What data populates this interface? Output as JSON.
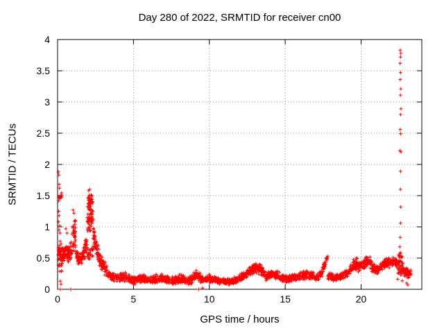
{
  "window": {
    "background": "#ffffff",
    "foreground": "#000000"
  },
  "chart_data": {
    "type": "scatter",
    "title": "Day 280 of 2022, SRMTID for receiver cn00",
    "xlabel": "GPS time / hours",
    "ylabel": "SRMTID / TECUs",
    "xlim": [
      0,
      24
    ],
    "ylim": [
      0,
      4
    ],
    "xticks": [
      0,
      5,
      10,
      15,
      20
    ],
    "yticks": [
      0,
      0.5,
      1,
      1.5,
      2,
      2.5,
      3,
      3.5,
      4
    ],
    "xtick_labels": [
      "0",
      "5",
      "10",
      "15",
      "20"
    ],
    "ytick_labels": [
      "0",
      "0.5",
      "1",
      "1.5",
      "2",
      "2.5",
      "3",
      "3.5",
      "4"
    ],
    "grid": {
      "visible": true,
      "style": "dotted",
      "color": "#8c8c8c",
      "positions_x": [
        5,
        10,
        15,
        20
      ],
      "positions_y": [
        0.5,
        1,
        1.5,
        2,
        2.5,
        3,
        3.5
      ]
    },
    "legend": {
      "visible": false
    },
    "marker": {
      "shape": "plus",
      "color": "#ff0000",
      "size": 5
    },
    "axes_color": "#000000",
    "series_name": "SRMTID",
    "band_segments": {
      "format": [
        "x_start",
        "x_end",
        "y_mean_start",
        "y_mean_end",
        "y_spread",
        "n_points"
      ],
      "rows": [
        [
          0.03,
          0.32,
          0.52,
          0.5,
          0.28,
          45
        ],
        [
          0.05,
          0.27,
          1.47,
          1.5,
          0.07,
          14
        ],
        [
          0.3,
          0.95,
          0.55,
          0.62,
          0.17,
          90
        ],
        [
          0.95,
          1.2,
          0.78,
          0.88,
          0.3,
          35
        ],
        [
          1.2,
          1.6,
          0.55,
          0.45,
          0.13,
          45
        ],
        [
          1.6,
          1.95,
          0.48,
          0.72,
          0.15,
          45
        ],
        [
          1.95,
          2.35,
          0.55,
          0.6,
          0.15,
          25
        ],
        [
          1.95,
          2.35,
          1.05,
          1.25,
          0.28,
          55
        ],
        [
          2.0,
          2.32,
          1.4,
          1.45,
          0.1,
          30
        ],
        [
          2.35,
          2.75,
          0.9,
          0.5,
          0.16,
          50
        ],
        [
          2.75,
          3.3,
          0.48,
          0.27,
          0.12,
          55
        ],
        [
          3.3,
          3.9,
          0.25,
          0.17,
          0.08,
          55
        ],
        [
          3.9,
          4.5,
          0.18,
          0.2,
          0.08,
          55
        ],
        [
          4.5,
          5.1,
          0.18,
          0.14,
          0.07,
          55
        ],
        [
          5.1,
          5.7,
          0.15,
          0.18,
          0.07,
          55
        ],
        [
          5.7,
          6.3,
          0.17,
          0.13,
          0.07,
          55
        ],
        [
          6.3,
          6.9,
          0.15,
          0.19,
          0.08,
          55
        ],
        [
          6.9,
          7.5,
          0.19,
          0.13,
          0.07,
          55
        ],
        [
          7.5,
          8.1,
          0.13,
          0.17,
          0.07,
          55
        ],
        [
          8.1,
          8.7,
          0.17,
          0.12,
          0.07,
          55
        ],
        [
          8.7,
          9.2,
          0.14,
          0.24,
          0.09,
          45
        ],
        [
          9.2,
          9.6,
          0.22,
          0.16,
          0.09,
          35
        ],
        [
          9.6,
          10.2,
          0.16,
          0.17,
          0.07,
          50
        ],
        [
          10.2,
          10.8,
          0.17,
          0.13,
          0.06,
          50
        ],
        [
          10.8,
          11.4,
          0.13,
          0.12,
          0.06,
          50
        ],
        [
          11.4,
          12.0,
          0.12,
          0.17,
          0.06,
          50
        ],
        [
          12.0,
          12.5,
          0.17,
          0.24,
          0.08,
          45
        ],
        [
          12.5,
          13.0,
          0.26,
          0.34,
          0.09,
          50
        ],
        [
          13.0,
          13.4,
          0.36,
          0.32,
          0.1,
          40
        ],
        [
          13.4,
          13.8,
          0.3,
          0.2,
          0.08,
          40
        ],
        [
          13.8,
          14.2,
          0.2,
          0.26,
          0.07,
          40
        ],
        [
          14.2,
          14.7,
          0.26,
          0.2,
          0.08,
          45
        ],
        [
          14.7,
          15.3,
          0.19,
          0.16,
          0.07,
          50
        ],
        [
          15.3,
          15.9,
          0.16,
          0.2,
          0.07,
          50
        ],
        [
          15.9,
          16.5,
          0.2,
          0.24,
          0.08,
          50
        ],
        [
          16.5,
          17.1,
          0.24,
          0.19,
          0.08,
          50
        ],
        [
          17.1,
          17.45,
          0.19,
          0.26,
          0.07,
          30
        ],
        [
          17.45,
          17.8,
          0.3,
          0.52,
          0.07,
          30
        ],
        [
          17.8,
          18.3,
          0.22,
          0.18,
          0.07,
          45
        ],
        [
          18.3,
          18.9,
          0.18,
          0.23,
          0.07,
          50
        ],
        [
          18.9,
          19.3,
          0.23,
          0.3,
          0.08,
          35
        ],
        [
          19.3,
          19.8,
          0.36,
          0.42,
          0.1,
          50
        ],
        [
          19.8,
          20.25,
          0.36,
          0.42,
          0.09,
          45
        ],
        [
          20.25,
          20.7,
          0.44,
          0.42,
          0.1,
          50
        ],
        [
          20.7,
          21.15,
          0.36,
          0.3,
          0.09,
          45
        ],
        [
          21.15,
          21.75,
          0.34,
          0.43,
          0.09,
          55
        ],
        [
          21.75,
          22.4,
          0.43,
          0.44,
          0.1,
          60
        ],
        [
          22.4,
          22.75,
          0.38,
          0.35,
          0.27,
          50
        ],
        [
          22.75,
          23.3,
          0.29,
          0.26,
          0.09,
          55
        ]
      ]
    },
    "outlier_points": [
      [
        0.05,
        1.88
      ],
      [
        0.08,
        1.83
      ],
      [
        0.1,
        1.68
      ],
      [
        0.13,
        1.62
      ],
      [
        0.07,
        1.25
      ],
      [
        0.1,
        1.18
      ],
      [
        0.06,
        1.08
      ],
      [
        0.14,
        1.02
      ],
      [
        0.09,
        0.95
      ],
      [
        0.16,
        0.9
      ],
      [
        0.55,
        0.97
      ],
      [
        0.62,
        0.9
      ],
      [
        0.18,
        0.13
      ],
      [
        0.23,
        0.08
      ],
      [
        0.18,
        0.0
      ],
      [
        0.87,
        0.0
      ],
      [
        1.02,
        1.27
      ],
      [
        1.08,
        1.22
      ],
      [
        2.05,
        1.58
      ],
      [
        2.12,
        1.6
      ],
      [
        9.3,
        0.0
      ],
      [
        9.55,
        0.02
      ],
      [
        22.58,
        3.83
      ],
      [
        22.62,
        3.78
      ],
      [
        22.6,
        3.72
      ],
      [
        22.57,
        3.62
      ],
      [
        22.6,
        3.47
      ],
      [
        22.58,
        3.36
      ],
      [
        22.62,
        3.21
      ],
      [
        22.59,
        3.11
      ],
      [
        22.63,
        2.89
      ],
      [
        22.6,
        2.8
      ],
      [
        22.58,
        2.56
      ],
      [
        22.61,
        2.49
      ],
      [
        22.56,
        2.22
      ],
      [
        22.63,
        2.2
      ],
      [
        22.6,
        1.89
      ],
      [
        22.59,
        1.6
      ],
      [
        22.61,
        1.32
      ],
      [
        22.6,
        1.06
      ],
      [
        22.58,
        0.83
      ],
      [
        22.55,
        0.68
      ],
      [
        23.0,
        0.1
      ],
      [
        23.08,
        0.07
      ]
    ]
  }
}
